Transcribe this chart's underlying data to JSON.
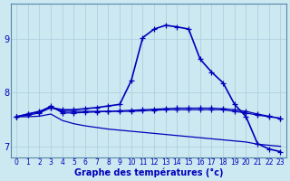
{
  "xlabel": "Graphe des températures (°c)",
  "bg_color": "#cce8f0",
  "grid_color": "#aaccdd",
  "line_color": "#0000bb",
  "xlim": [
    -0.5,
    23.5
  ],
  "ylim": [
    6.8,
    9.65
  ],
  "xticks": [
    0,
    1,
    2,
    3,
    4,
    5,
    6,
    7,
    8,
    9,
    10,
    11,
    12,
    13,
    14,
    15,
    16,
    17,
    18,
    19,
    20,
    21,
    22,
    23
  ],
  "yticks": [
    7,
    8,
    9
  ],
  "curves": [
    {
      "x": [
        0,
        1,
        2,
        3,
        4,
        5,
        6,
        7,
        8,
        9,
        10,
        11,
        12,
        13,
        14,
        15,
        16,
        17,
        18,
        19,
        20,
        21,
        22,
        23
      ],
      "y": [
        7.55,
        7.6,
        7.65,
        7.72,
        7.68,
        7.68,
        7.7,
        7.72,
        7.75,
        7.78,
        8.22,
        9.02,
        9.18,
        9.25,
        9.22,
        9.18,
        8.62,
        8.38,
        8.18,
        7.78,
        7.55,
        7.05,
        6.95,
        6.9
      ],
      "marker": true,
      "lw": 1.2
    },
    {
      "x": [
        0,
        1,
        2,
        3,
        4,
        5,
        6,
        7,
        8,
        9,
        10,
        11,
        12,
        13,
        14,
        15,
        16,
        17,
        18,
        19,
        20,
        21,
        22,
        23
      ],
      "y": [
        7.55,
        7.58,
        7.62,
        7.72,
        7.65,
        7.65,
        7.65,
        7.65,
        7.65,
        7.65,
        7.65,
        7.66,
        7.67,
        7.68,
        7.68,
        7.68,
        7.68,
        7.68,
        7.68,
        7.65,
        7.62,
        7.58,
        7.55,
        7.52
      ],
      "marker": true,
      "lw": 0.9
    },
    {
      "x": [
        0,
        1,
        2,
        3,
        4,
        5,
        6,
        7,
        8,
        9,
        10,
        11,
        12,
        13,
        14,
        15,
        16,
        17,
        18,
        19,
        20,
        21,
        22,
        23
      ],
      "y": [
        7.55,
        7.6,
        7.64,
        7.75,
        7.62,
        7.62,
        7.63,
        7.64,
        7.65,
        7.66,
        7.67,
        7.68,
        7.69,
        7.7,
        7.71,
        7.71,
        7.71,
        7.71,
        7.7,
        7.68,
        7.65,
        7.6,
        7.56,
        7.52
      ],
      "marker": true,
      "lw": 0.9
    },
    {
      "x": [
        0,
        1,
        2,
        3,
        4,
        5,
        6,
        7,
        8,
        9,
        10,
        11,
        12,
        13,
        14,
        15,
        16,
        17,
        18,
        19,
        20,
        21,
        22,
        23
      ],
      "y": [
        7.55,
        7.55,
        7.56,
        7.6,
        7.48,
        7.42,
        7.38,
        7.35,
        7.32,
        7.3,
        7.28,
        7.26,
        7.24,
        7.22,
        7.2,
        7.18,
        7.16,
        7.14,
        7.12,
        7.1,
        7.08,
        7.04,
        7.02,
        7.0
      ],
      "marker": false,
      "lw": 0.9
    }
  ]
}
